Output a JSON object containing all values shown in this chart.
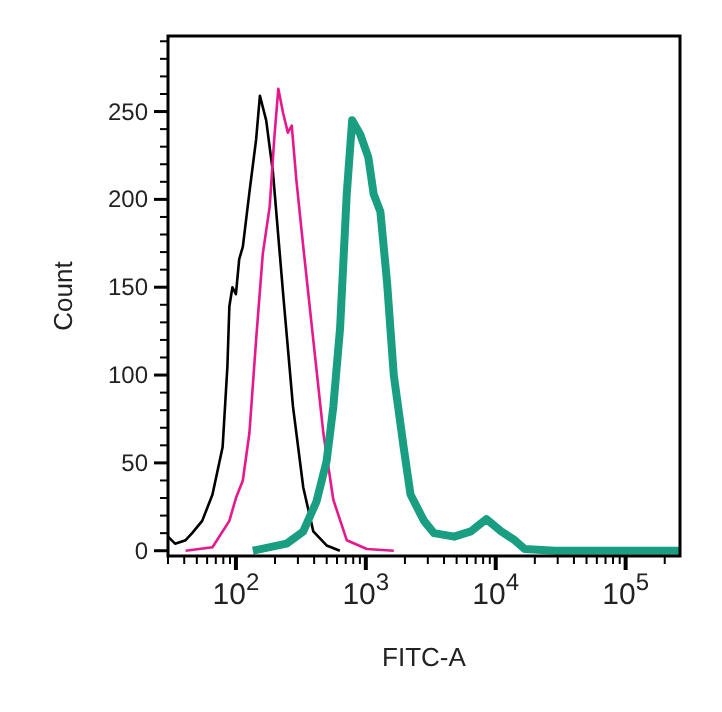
{
  "chart_data": {
    "type": "line",
    "xlabel": "FITC-A",
    "ylabel": "Count",
    "log": "x",
    "grid": false,
    "marker": "none",
    "line_style": "solid",
    "xlim": [
      30,
      262144
    ],
    "ylim": [
      -3,
      293
    ],
    "xticks": [
      {
        "value": 30,
        "label": null
      },
      {
        "value": 40,
        "label": null
      },
      {
        "value": 50,
        "label": null
      },
      {
        "value": 60,
        "label": null
      },
      {
        "value": 70,
        "label": null
      },
      {
        "value": 80,
        "label": null
      },
      {
        "value": 90,
        "label": null
      },
      {
        "value": 100,
        "label": "10$^{2}$"
      },
      {
        "value": 200,
        "label": null
      },
      {
        "value": 300,
        "label": null
      },
      {
        "value": 400,
        "label": null
      },
      {
        "value": 500,
        "label": null
      },
      {
        "value": 600,
        "label": null
      },
      {
        "value": 700,
        "label": null
      },
      {
        "value": 800,
        "label": null
      },
      {
        "value": 900,
        "label": null
      },
      {
        "value": 1000,
        "label": "10$^{3}$"
      },
      {
        "value": 2000,
        "label": null
      },
      {
        "value": 3000,
        "label": null
      },
      {
        "value": 4000,
        "label": null
      },
      {
        "value": 5000,
        "label": null
      },
      {
        "value": 6000,
        "label": null
      },
      {
        "value": 7000,
        "label": null
      },
      {
        "value": 8000,
        "label": null
      },
      {
        "value": 9000,
        "label": null
      },
      {
        "value": 10000,
        "label": "10$^{4}$"
      },
      {
        "value": 20000,
        "label": null
      },
      {
        "value": 30000,
        "label": null
      },
      {
        "value": 40000,
        "label": null
      },
      {
        "value": 50000,
        "label": null
      },
      {
        "value": 60000,
        "label": null
      },
      {
        "value": 70000,
        "label": null
      },
      {
        "value": 80000,
        "label": null
      },
      {
        "value": 90000,
        "label": null
      },
      {
        "value": 100000,
        "label": "10$^{5}$"
      },
      {
        "value": 200000,
        "label": null
      }
    ],
    "yticks": [
      0,
      {
        "value": 10,
        "label": null
      },
      {
        "value": 20,
        "label": null
      },
      {
        "value": 30,
        "label": null
      },
      {
        "value": 40,
        "label": null
      },
      50,
      {
        "value": 60,
        "label": null
      },
      {
        "value": 70,
        "label": null
      },
      {
        "value": 80,
        "label": null
      },
      {
        "value": 90,
        "label": null
      },
      100,
      {
        "value": 110,
        "label": null
      },
      {
        "value": 120,
        "label": null
      },
      {
        "value": 130,
        "label": null
      },
      {
        "value": 140,
        "label": null
      },
      150,
      {
        "value": 160,
        "label": null
      },
      {
        "value": 170,
        "label": null
      },
      {
        "value": 180,
        "label": null
      },
      {
        "value": 190,
        "label": null
      },
      200,
      {
        "value": 210,
        "label": null
      },
      {
        "value": 220,
        "label": null
      },
      {
        "value": 230,
        "label": null
      },
      {
        "value": 240,
        "label": null
      },
      250,
      {
        "value": 260,
        "label": null
      },
      {
        "value": 270,
        "label": null
      },
      {
        "value": 280,
        "label": null
      },
      {
        "value": 290,
        "label": null
      }
    ],
    "series": [
      {
        "color": "#000000",
        "x": [
          30,
          34,
          41,
          46,
          55,
          66,
          79,
          86,
          89,
          94,
          100,
          106,
          113,
          127,
          143,
          153,
          171,
          193,
          231,
          275,
          330,
          394,
          499,
          631
        ],
        "values": [
          8,
          4,
          6,
          10,
          17,
          32,
          59,
          105,
          139,
          150,
          146,
          166,
          173,
          204,
          234,
          259,
          245,
          215,
          146,
          82,
          36,
          11,
          3,
          0
        ]
      },
      {
        "color": "#e6198c",
        "x": [
          41,
          66,
          89,
          100,
          113,
          127,
          143,
          161,
          182,
          197,
          212,
          231,
          251,
          269,
          292,
          330,
          394,
          471,
          562,
          713,
          1019,
          1641
        ],
        "values": [
          0,
          2,
          17,
          30,
          40,
          67,
          120,
          169,
          196,
          234,
          263,
          249,
          238,
          242,
          211,
          173,
          120,
          67,
          29,
          6,
          1,
          0
        ]
      },
      {
        "color": "#1a9e82",
        "x": [
          135,
          245,
          330,
          417,
          499,
          562,
          634,
          713,
          785,
          906,
          1045,
          1149,
          1294,
          1456,
          1641,
          1963,
          2208,
          2805,
          3350,
          4786,
          6442,
          8470,
          11020,
          13990,
          16720,
          28580,
          260000
        ],
        "values": [
          0,
          4,
          11,
          28,
          51,
          82,
          127,
          203,
          245,
          237,
          224,
          203,
          193,
          153,
          100,
          58,
          32,
          17,
          10,
          8,
          11,
          18,
          11,
          6,
          1,
          0,
          0
        ]
      }
    ]
  }
}
